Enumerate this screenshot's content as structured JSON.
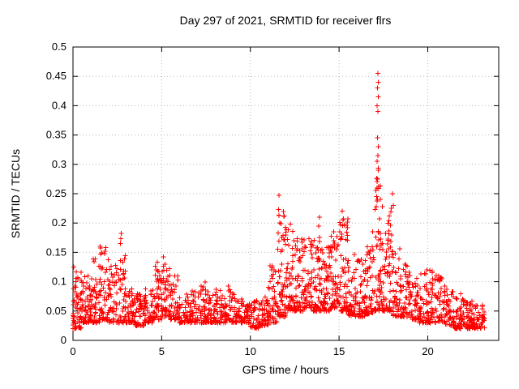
{
  "chart_data": {
    "type": "scatter",
    "title": "Day 297 of 2021, SRMTID for receiver flrs",
    "xlabel": "GPS time / hours",
    "ylabel": "SRMTID / TECUs",
    "xlim": [
      0,
      24
    ],
    "ylim": [
      0,
      0.5
    ],
    "grid": true,
    "legend": "none",
    "marker": "plus",
    "marker_color": "#ff0000",
    "x_tick_values": [
      0,
      5,
      10,
      15,
      20
    ],
    "x_tick_labels": [
      "0",
      "5",
      "10",
      "15",
      "20"
    ],
    "y_tick_values": [
      0,
      0.05,
      0.1,
      0.15,
      0.2,
      0.25,
      0.3,
      0.35,
      0.4,
      0.45,
      0.5
    ],
    "y_tick_labels": [
      "0",
      "0.05",
      "0.1",
      "0.15",
      "0.2",
      "0.25",
      "0.3",
      "0.35",
      "0.4",
      "0.45",
      "0.5"
    ],
    "density_bins": [
      {
        "t0": 0.0,
        "t1": 0.5,
        "n": 60,
        "lo": 0.02,
        "hi": 0.12
      },
      {
        "t0": 0.5,
        "t1": 1.0,
        "n": 55,
        "lo": 0.03,
        "hi": 0.11
      },
      {
        "t0": 1.0,
        "t1": 1.5,
        "n": 50,
        "lo": 0.03,
        "hi": 0.14
      },
      {
        "t0": 1.5,
        "t1": 2.0,
        "n": 50,
        "lo": 0.035,
        "hi": 0.16
      },
      {
        "t0": 2.0,
        "t1": 2.5,
        "n": 48,
        "lo": 0.03,
        "hi": 0.13
      },
      {
        "t0": 2.5,
        "t1": 3.0,
        "n": 50,
        "lo": 0.03,
        "hi": 0.15
      },
      {
        "t0": 3.0,
        "t1": 3.5,
        "n": 45,
        "lo": 0.03,
        "hi": 0.09
      },
      {
        "t0": 3.5,
        "t1": 4.0,
        "n": 45,
        "lo": 0.025,
        "hi": 0.08
      },
      {
        "t0": 4.0,
        "t1": 4.5,
        "n": 45,
        "lo": 0.03,
        "hi": 0.09
      },
      {
        "t0": 4.5,
        "t1": 5.0,
        "n": 50,
        "lo": 0.035,
        "hi": 0.14
      },
      {
        "t0": 5.0,
        "t1": 5.5,
        "n": 50,
        "lo": 0.04,
        "hi": 0.13
      },
      {
        "t0": 5.5,
        "t1": 6.0,
        "n": 45,
        "lo": 0.035,
        "hi": 0.11
      },
      {
        "t0": 6.0,
        "t1": 6.5,
        "n": 42,
        "lo": 0.03,
        "hi": 0.08
      },
      {
        "t0": 6.5,
        "t1": 7.0,
        "n": 42,
        "lo": 0.03,
        "hi": 0.085
      },
      {
        "t0": 7.0,
        "t1": 7.5,
        "n": 42,
        "lo": 0.03,
        "hi": 0.1
      },
      {
        "t0": 7.5,
        "t1": 8.0,
        "n": 42,
        "lo": 0.03,
        "hi": 0.09
      },
      {
        "t0": 8.0,
        "t1": 8.5,
        "n": 42,
        "lo": 0.03,
        "hi": 0.09
      },
      {
        "t0": 8.5,
        "t1": 9.0,
        "n": 42,
        "lo": 0.03,
        "hi": 0.1
      },
      {
        "t0": 9.0,
        "t1": 9.5,
        "n": 40,
        "lo": 0.03,
        "hi": 0.09
      },
      {
        "t0": 9.5,
        "t1": 10.0,
        "n": 40,
        "lo": 0.03,
        "hi": 0.08
      },
      {
        "t0": 10.0,
        "t1": 10.5,
        "n": 40,
        "lo": 0.02,
        "hi": 0.07
      },
      {
        "t0": 10.5,
        "t1": 11.0,
        "n": 45,
        "lo": 0.025,
        "hi": 0.08
      },
      {
        "t0": 11.0,
        "t1": 11.5,
        "n": 45,
        "lo": 0.03,
        "hi": 0.13
      },
      {
        "t0": 11.5,
        "t1": 12.0,
        "n": 60,
        "lo": 0.04,
        "hi": 0.22
      },
      {
        "t0": 12.0,
        "t1": 12.5,
        "n": 55,
        "lo": 0.05,
        "hi": 0.19
      },
      {
        "t0": 12.5,
        "t1": 13.0,
        "n": 55,
        "lo": 0.05,
        "hi": 0.18
      },
      {
        "t0": 13.0,
        "t1": 13.5,
        "n": 55,
        "lo": 0.055,
        "hi": 0.19
      },
      {
        "t0": 13.5,
        "t1": 14.0,
        "n": 55,
        "lo": 0.05,
        "hi": 0.2
      },
      {
        "t0": 14.0,
        "t1": 14.5,
        "n": 55,
        "lo": 0.05,
        "hi": 0.17
      },
      {
        "t0": 14.5,
        "t1": 15.0,
        "n": 55,
        "lo": 0.055,
        "hi": 0.19
      },
      {
        "t0": 15.0,
        "t1": 15.5,
        "n": 60,
        "lo": 0.05,
        "hi": 0.21
      },
      {
        "t0": 15.5,
        "t1": 16.0,
        "n": 50,
        "lo": 0.04,
        "hi": 0.16
      },
      {
        "t0": 16.0,
        "t1": 16.5,
        "n": 50,
        "lo": 0.04,
        "hi": 0.14
      },
      {
        "t0": 16.5,
        "t1": 17.0,
        "n": 50,
        "lo": 0.045,
        "hi": 0.17
      },
      {
        "t0": 17.0,
        "t1": 17.5,
        "n": 70,
        "lo": 0.05,
        "hi": 0.3
      },
      {
        "t0": 17.5,
        "t1": 18.0,
        "n": 55,
        "lo": 0.05,
        "hi": 0.22
      },
      {
        "t0": 18.0,
        "t1": 18.5,
        "n": 50,
        "lo": 0.04,
        "hi": 0.16
      },
      {
        "t0": 18.5,
        "t1": 19.0,
        "n": 50,
        "lo": 0.04,
        "hi": 0.13
      },
      {
        "t0": 19.0,
        "t1": 19.5,
        "n": 45,
        "lo": 0.035,
        "hi": 0.12
      },
      {
        "t0": 19.5,
        "t1": 20.0,
        "n": 45,
        "lo": 0.03,
        "hi": 0.13
      },
      {
        "t0": 20.0,
        "t1": 20.5,
        "n": 45,
        "lo": 0.03,
        "hi": 0.12
      },
      {
        "t0": 20.5,
        "t1": 21.0,
        "n": 45,
        "lo": 0.03,
        "hi": 0.11
      },
      {
        "t0": 21.0,
        "t1": 21.5,
        "n": 45,
        "lo": 0.025,
        "hi": 0.09
      },
      {
        "t0": 21.5,
        "t1": 22.0,
        "n": 50,
        "lo": 0.02,
        "hi": 0.08
      },
      {
        "t0": 22.0,
        "t1": 22.5,
        "n": 55,
        "lo": 0.02,
        "hi": 0.07
      },
      {
        "t0": 22.5,
        "t1": 23.2,
        "n": 55,
        "lo": 0.02,
        "hi": 0.06
      }
    ],
    "outliers": [
      [
        0.05,
        0.125
      ],
      [
        1.85,
        0.158
      ],
      [
        2.68,
        0.165
      ],
      [
        2.7,
        0.173
      ],
      [
        2.72,
        0.182
      ],
      [
        2.95,
        0.118
      ],
      [
        5.1,
        0.142
      ],
      [
        11.58,
        0.223
      ],
      [
        11.6,
        0.213
      ],
      [
        11.62,
        0.247
      ],
      [
        11.66,
        0.2
      ],
      [
        12.25,
        0.198
      ],
      [
        13.85,
        0.195
      ],
      [
        13.9,
        0.21
      ],
      [
        15.18,
        0.22
      ],
      [
        15.22,
        0.205
      ],
      [
        16.9,
        0.185
      ],
      [
        17.12,
        0.245
      ],
      [
        17.15,
        0.26
      ],
      [
        17.17,
        0.275
      ],
      [
        17.2,
        0.29
      ],
      [
        17.14,
        0.305
      ],
      [
        17.18,
        0.315
      ],
      [
        17.22,
        0.33
      ],
      [
        17.16,
        0.345
      ],
      [
        17.19,
        0.39
      ],
      [
        17.15,
        0.4
      ],
      [
        17.21,
        0.415
      ],
      [
        17.17,
        0.43
      ],
      [
        17.2,
        0.44
      ],
      [
        17.18,
        0.455
      ],
      [
        17.95,
        0.225
      ],
      [
        18.02,
        0.25
      ],
      [
        18.06,
        0.23
      ]
    ]
  }
}
